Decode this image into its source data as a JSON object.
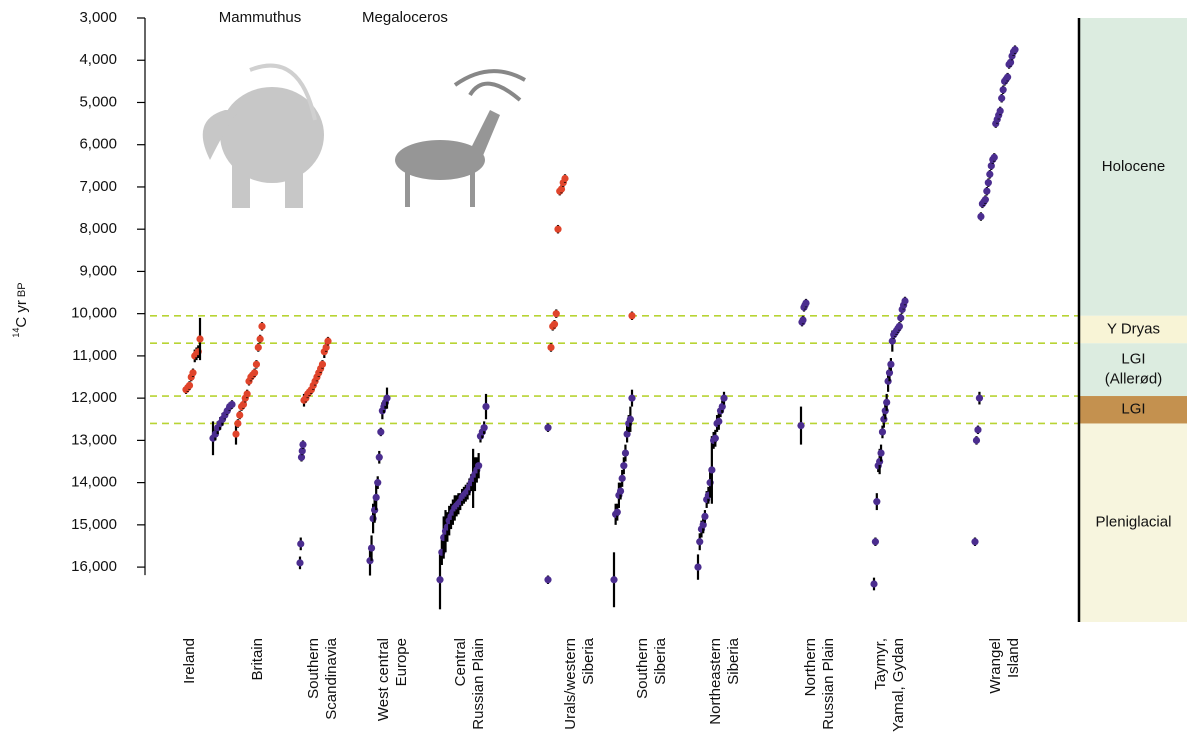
{
  "chart_data": {
    "type": "dot_errorbar",
    "y_label_sup": "14",
    "y_label": "C yr",
    "y_label_unit": "BP",
    "ylim": [
      3000,
      17300
    ],
    "inverted": true,
    "yticks": [
      {
        "value": 3000,
        "label": "3,000"
      },
      {
        "value": 4000,
        "label": "4,000"
      },
      {
        "value": 5000,
        "label": "5,000"
      },
      {
        "value": 6000,
        "label": "6,000"
      },
      {
        "value": 7000,
        "label": "7,000"
      },
      {
        "value": 8000,
        "label": "8,000"
      },
      {
        "value": 9000,
        "label": "9,000"
      },
      {
        "value": 10000,
        "label": "10,000"
      },
      {
        "value": 11000,
        "label": "11,000"
      },
      {
        "value": 12000,
        "label": "12,000"
      },
      {
        "value": 13000,
        "label": "13,000"
      },
      {
        "value": 14000,
        "label": "14,000"
      },
      {
        "value": 15000,
        "label": "15,000"
      },
      {
        "value": 16000,
        "label": "16,000"
      }
    ],
    "categories": [
      [
        "Ireland"
      ],
      [
        "Britain"
      ],
      [
        "Southern",
        "Scandinavia"
      ],
      [
        "West central",
        "Europe"
      ],
      [
        "Central",
        "Russian Plain"
      ],
      [
        "Urals/western",
        "Siberia"
      ],
      [
        "Southern",
        "Siberia"
      ],
      [
        "Northeastern",
        "Siberia"
      ],
      [
        "Northern",
        "Russian Plain"
      ],
      [
        "Taymyr,",
        "Yamal, Gydan"
      ],
      [
        "Wrangel",
        "Island"
      ]
    ],
    "series": [
      {
        "name": "Mammuthus",
        "color": "#4b2d8f",
        "values": [
          [
            [
              12950,
              400
            ],
            [
              12850,
              150
            ],
            [
              12700,
              150
            ],
            [
              12600,
              150
            ],
            [
              12500,
              150
            ],
            [
              12400,
              100
            ],
            [
              12300,
              100
            ],
            [
              12200,
              100
            ],
            [
              12150,
              100
            ]
          ],
          [],
          [
            [
              15900,
              150
            ],
            [
              15450,
              150
            ],
            [
              13400,
              100
            ],
            [
              13250,
              100
            ],
            [
              13100,
              100
            ]
          ],
          [
            [
              15850,
              350
            ],
            [
              15550,
              300
            ],
            [
              14850,
              350
            ],
            [
              14650,
              300
            ],
            [
              14350,
              300
            ],
            [
              14000,
              150
            ],
            [
              13400,
              150
            ],
            [
              12800,
              100
            ],
            [
              12300,
              200
            ],
            [
              12200,
              150
            ],
            [
              12100,
              150
            ],
            [
              12000,
              250
            ]
          ],
          [
            [
              16300,
              700
            ],
            [
              15650,
              300
            ],
            [
              15300,
              500
            ],
            [
              15150,
              500
            ],
            [
              15050,
              350
            ],
            [
              14900,
              350
            ],
            [
              14800,
              300
            ],
            [
              14700,
              300
            ],
            [
              14600,
              300
            ],
            [
              14550,
              250
            ],
            [
              14500,
              250
            ],
            [
              14450,
              200
            ],
            [
              14350,
              200
            ],
            [
              14300,
              200
            ],
            [
              14250,
              200
            ],
            [
              14200,
              200
            ],
            [
              14100,
              200
            ],
            [
              14000,
              200
            ],
            [
              13900,
              700
            ],
            [
              13800,
              400
            ],
            [
              13700,
              300
            ],
            [
              13600,
              300
            ],
            [
              12900,
              150
            ],
            [
              12800,
              150
            ],
            [
              12700,
              150
            ],
            [
              12200,
              300
            ]
          ],
          [
            [
              16300,
              100
            ],
            [
              12700,
              100
            ]
          ],
          [
            [
              16300,
              650
            ],
            [
              14750,
              250
            ],
            [
              14700,
              200
            ],
            [
              14300,
              300
            ],
            [
              14200,
              200
            ],
            [
              13900,
              200
            ],
            [
              13600,
              200
            ],
            [
              13300,
              200
            ],
            [
              12850,
              200
            ],
            [
              12600,
              200
            ],
            [
              12500,
              300
            ],
            [
              12000,
              200
            ]
          ],
          [
            [
              16000,
              300
            ],
            [
              15400,
              200
            ],
            [
              15100,
              200
            ],
            [
              15000,
              200
            ],
            [
              14800,
              150
            ],
            [
              14400,
              200
            ],
            [
              14300,
              200
            ],
            [
              14000,
              350
            ],
            [
              13700,
              800
            ],
            [
              13000,
              200
            ],
            [
              12950,
              200
            ],
            [
              12600,
              200
            ],
            [
              12550,
              200
            ],
            [
              12300,
              150
            ],
            [
              12200,
              150
            ],
            [
              12000,
              150
            ]
          ],
          [
            [
              12650,
              450
            ],
            [
              10200,
              100
            ],
            [
              10150,
              100
            ],
            [
              9850,
              100
            ],
            [
              9800,
              100
            ],
            [
              9750,
              100
            ]
          ],
          [
            [
              16400,
              150
            ],
            [
              15400,
              100
            ],
            [
              14450,
              200
            ],
            [
              13600,
              150
            ],
            [
              13500,
              300
            ],
            [
              13300,
              200
            ],
            [
              12800,
              150
            ],
            [
              12500,
              200
            ],
            [
              12300,
              200
            ],
            [
              12100,
              200
            ],
            [
              11600,
              250
            ],
            [
              11400,
              200
            ],
            [
              11200,
              150
            ],
            [
              10650,
              250
            ],
            [
              10500,
              100
            ],
            [
              10450,
              100
            ],
            [
              10400,
              100
            ],
            [
              10350,
              100
            ],
            [
              10300,
              100
            ],
            [
              10100,
              100
            ],
            [
              9900,
              100
            ],
            [
              9800,
              100
            ],
            [
              9700,
              100
            ]
          ],
          [
            [
              15400,
              100
            ],
            [
              13000,
              100
            ],
            [
              12750,
              100
            ],
            [
              12000,
              150
            ],
            [
              7700,
              100
            ],
            [
              7400,
              100
            ],
            [
              7350,
              100
            ],
            [
              7300,
              100
            ],
            [
              7100,
              100
            ],
            [
              6900,
              100
            ],
            [
              6700,
              100
            ],
            [
              6500,
              100
            ],
            [
              6350,
              100
            ],
            [
              6300,
              100
            ],
            [
              5500,
              100
            ],
            [
              5400,
              100
            ],
            [
              5300,
              100
            ],
            [
              5200,
              100
            ],
            [
              4900,
              100
            ],
            [
              4700,
              100
            ],
            [
              4500,
              100
            ],
            [
              4450,
              100
            ],
            [
              4400,
              100
            ],
            [
              4100,
              100
            ],
            [
              4050,
              100
            ],
            [
              3900,
              100
            ],
            [
              3800,
              100
            ],
            [
              3750,
              100
            ]
          ]
        ]
      },
      {
        "name": "Megaloceros",
        "color": "#e0442b",
        "values": [
          [
            [
              11800,
              100
            ],
            [
              11750,
              100
            ],
            [
              11700,
              100
            ],
            [
              11500,
              100
            ],
            [
              11400,
              100
            ],
            [
              11000,
              150
            ],
            [
              10950,
              150
            ],
            [
              10900,
              150
            ],
            [
              10600,
              500
            ]
          ],
          [
            [
              12850,
              250
            ],
            [
              12600,
              100
            ],
            [
              12400,
              100
            ],
            [
              12200,
              100
            ],
            [
              12150,
              100
            ],
            [
              12000,
              100
            ],
            [
              11900,
              100
            ],
            [
              11600,
              100
            ],
            [
              11500,
              100
            ],
            [
              11450,
              100
            ],
            [
              11400,
              100
            ],
            [
              11200,
              100
            ],
            [
              10800,
              100
            ],
            [
              10600,
              100
            ],
            [
              10300,
              100
            ]
          ],
          [
            [
              12050,
              150
            ],
            [
              12000,
              100
            ],
            [
              11900,
              100
            ],
            [
              11850,
              100
            ],
            [
              11800,
              100
            ],
            [
              11700,
              100
            ],
            [
              11600,
              100
            ],
            [
              11500,
              100
            ],
            [
              11400,
              100
            ],
            [
              11300,
              100
            ],
            [
              11200,
              100
            ],
            [
              10900,
              150
            ],
            [
              10800,
              100
            ],
            [
              10650,
              100
            ]
          ],
          [],
          [],
          [
            [
              10800,
              100
            ],
            [
              10300,
              100
            ],
            [
              10250,
              100
            ],
            [
              10000,
              100
            ],
            [
              8000,
              100
            ],
            [
              7100,
              100
            ],
            [
              7050,
              100
            ],
            [
              6900,
              100
            ],
            [
              6800,
              100
            ]
          ],
          [
            [
              10050,
              100
            ]
          ],
          [],
          [],
          [],
          []
        ]
      }
    ],
    "periods": [
      {
        "label": [
          "Holocene"
        ],
        "from": 3000,
        "to": 10050,
        "color": "#dcece0"
      },
      {
        "label": [
          "Y Dryas"
        ],
        "from": 10050,
        "to": 10700,
        "color": "#f8f4d6"
      },
      {
        "label": [
          "LGI",
          "(Allerød)"
        ],
        "from": 10700,
        "to": 11950,
        "color": "#dcece0"
      },
      {
        "label": [
          "LGI"
        ],
        "from": 11950,
        "to": 12600,
        "color": "#c4914f"
      },
      {
        "label": [
          "Pleniglacial"
        ],
        "from": 12600,
        "to": 17300,
        "color": "#f7f5de"
      }
    ]
  }
}
